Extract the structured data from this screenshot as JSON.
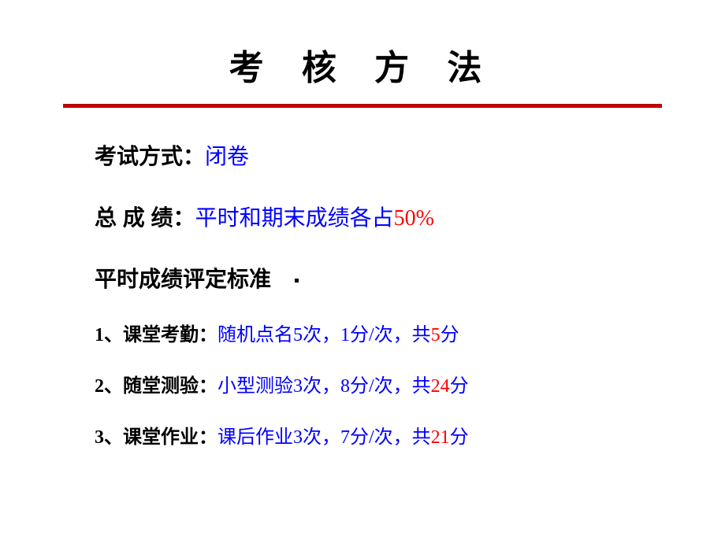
{
  "title": "考 核 方 法",
  "colors": {
    "divider": "#c00000",
    "blue": "#0000ff",
    "red": "#ff0000",
    "black": "#000000",
    "background": "#ffffff"
  },
  "fonts": {
    "title_size": 44,
    "body_size": 28,
    "item_size": 24
  },
  "exam_method": {
    "label": "考试方式：",
    "value": "闭卷"
  },
  "total_score": {
    "label": "总 成 绩：",
    "value_prefix": "平时和期末成绩各占",
    "value_highlight": "50%"
  },
  "criteria_header": "平时成绩评定标准",
  "items": [
    {
      "num": "1",
      "label": "、课堂考勤：",
      "desc_p1": "随机点名",
      "desc_n1": "5",
      "desc_p2": "次，",
      "desc_n2": "1",
      "desc_p3": "分",
      "desc_slash": "/",
      "desc_p4": "次，共",
      "highlight": "5",
      "desc_p5": "分"
    },
    {
      "num": "2",
      "label": "、随堂测验：",
      "desc_p1": "小型测验",
      "desc_n1": "3",
      "desc_p2": "次，",
      "desc_n2": "8",
      "desc_p3": "分",
      "desc_slash": "/",
      "desc_p4": "次，共",
      "highlight": "24",
      "desc_p5": "分"
    },
    {
      "num": "3",
      "label": "、课堂作业：",
      "desc_p1": "课后作业",
      "desc_n1": "3",
      "desc_p2": "次，",
      "desc_n2": "7",
      "desc_p3": "分",
      "desc_slash": "/",
      "desc_p4": "次，共",
      "highlight": "21",
      "desc_p5": "分"
    }
  ]
}
